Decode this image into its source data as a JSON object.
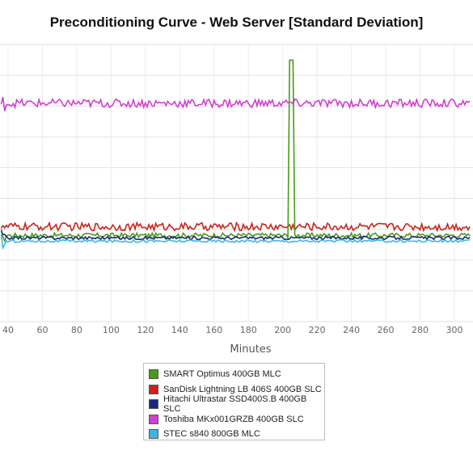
{
  "chart_data": {
    "type": "line",
    "title": "Preconditioning Curve - Web Server [Standard Deviation]",
    "xlabel": "Minutes",
    "ylabel": "",
    "x_ticks": [
      40,
      60,
      80,
      100,
      120,
      140,
      160,
      180,
      200,
      220,
      240,
      260,
      280,
      300
    ],
    "xlim": [
      36,
      309
    ],
    "grid": true,
    "legend_position": "bottom-center",
    "series": [
      {
        "name": "SMART Optimus 400GB MLC",
        "color": "#4a9a1a",
        "level": 33,
        "noise": 0.9,
        "spike_at": [
          204,
          206
        ],
        "spike_level": 100
      },
      {
        "name": "SanDisk Lightning LB 406S 400GB SLC",
        "color": "#c8241c",
        "level": 36.3,
        "noise": 1.5
      },
      {
        "name": "Hitachi Ultrastar SSD400S.B 400GB SLC",
        "color": "#1a2a7a",
        "level": 32,
        "noise": 0.6
      },
      {
        "name": "Toshiba MKx001GRZB 400GB SLC",
        "color": "#d23ed2",
        "level": 83.5,
        "noise": 1.6
      },
      {
        "name": "STEC s840 800GB MLC",
        "color": "#3fb4e8",
        "level": 30.8,
        "noise": 0.5
      }
    ]
  }
}
